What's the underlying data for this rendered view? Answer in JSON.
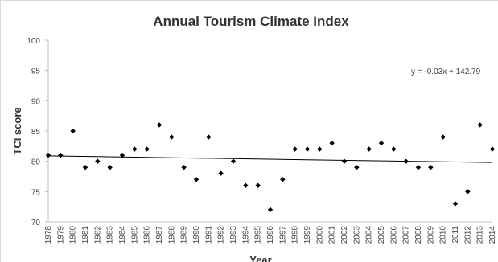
{
  "chart_data": {
    "type": "scatter",
    "title": "Annual Tourism Climate Index",
    "x_label": "Year",
    "y_label": "TCI score",
    "x": [
      1978,
      1979,
      1980,
      1981,
      1982,
      1983,
      1984,
      1985,
      1986,
      1987,
      1988,
      1989,
      1990,
      1991,
      1992,
      1993,
      1994,
      1995,
      1996,
      1997,
      1998,
      1999,
      2000,
      2001,
      2002,
      2003,
      2004,
      2005,
      2006,
      2007,
      2008,
      2009,
      2010,
      2011,
      2012,
      2013,
      2014
    ],
    "values": [
      81,
      81,
      85,
      79,
      80,
      79,
      81,
      82,
      82,
      86,
      84,
      79,
      77,
      84,
      78,
      80,
      76,
      76,
      72,
      77,
      82,
      82,
      82,
      83,
      80,
      79,
      82,
      83,
      82,
      80,
      79,
      79,
      84,
      73,
      75,
      86,
      82
    ],
    "color": "#000000",
    "xlim": [
      1978,
      2014
    ],
    "ylim": [
      70,
      100
    ],
    "yticks": [
      70,
      75,
      80,
      85,
      90,
      95,
      100
    ],
    "trendline": [
      80.9,
      79.8
    ],
    "annotation": "y = -0.03x + 142.79"
  }
}
